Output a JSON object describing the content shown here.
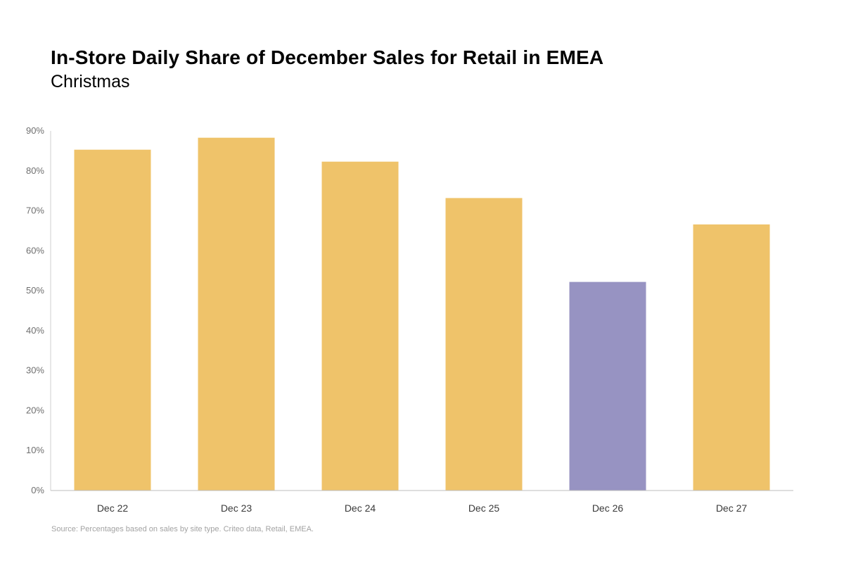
{
  "chart_data": {
    "type": "bar",
    "title": "In-Store Daily Share of December Sales for Retail in EMEA",
    "subtitle": "Christmas",
    "categories": [
      "Dec 22",
      "Dec 23",
      "Dec 24",
      "Dec 25",
      "Dec 26",
      "Dec 27"
    ],
    "values": [
      85.3,
      88.3,
      82.3,
      73.2,
      52.2,
      66.6
    ],
    "bar_colors": [
      "#EFC36A",
      "#EFC36A",
      "#EFC36A",
      "#EFC36A",
      "#9793C2",
      "#EFC36A"
    ],
    "y_ticks": [
      "0%",
      "10%",
      "20%",
      "30%",
      "40%",
      "50%",
      "60%",
      "70%",
      "80%",
      "90%"
    ],
    "ylim": [
      0,
      90
    ],
    "xlabel": "",
    "ylabel": "",
    "grid": false,
    "source": "Source: Percentages based on sales by site type. Criteo data, Retail, EMEA."
  }
}
